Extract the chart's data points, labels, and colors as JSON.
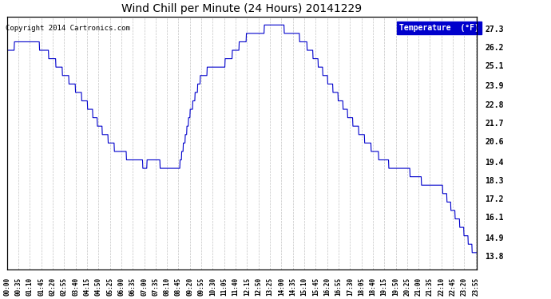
{
  "title": "Wind Chill per Minute (24 Hours) 20141229",
  "copyright": "Copyright 2014 Cartronics.com",
  "legend_label": "Temperature  (°F)",
  "line_color": "#0000CC",
  "background_color": "#ffffff",
  "grid_color": "#aaaaaa",
  "ylabel_right": "Temperature (°F)",
  "yticks": [
    13.8,
    14.9,
    16.1,
    17.2,
    18.3,
    19.4,
    20.6,
    21.7,
    22.8,
    23.9,
    25.1,
    26.2,
    27.3
  ],
  "ylim": [
    13.0,
    28.0
  ],
  "xtick_labels": [
    "00:00",
    "00:35",
    "01:10",
    "01:45",
    "02:20",
    "02:55",
    "03:40",
    "04:15",
    "04:50",
    "05:25",
    "06:00",
    "06:35",
    "07:00",
    "07:35",
    "08:10",
    "08:45",
    "09:20",
    "09:55",
    "10:30",
    "11:05",
    "11:40",
    "12:15",
    "12:50",
    "13:25",
    "14:00",
    "14:35",
    "15:10",
    "15:45",
    "16:20",
    "16:55",
    "17:30",
    "18:05",
    "18:40",
    "19:15",
    "19:50",
    "20:25",
    "21:00",
    "21:35",
    "22:10",
    "22:45",
    "23:20",
    "23:55"
  ],
  "key_times_minutes": [
    0,
    35,
    70,
    105,
    140,
    175,
    220,
    255,
    290,
    325,
    360,
    395,
    420,
    455,
    490,
    525,
    560,
    595,
    630,
    665,
    700,
    735,
    770,
    805,
    840,
    875,
    910,
    945,
    980,
    1015,
    1050,
    1085,
    1120,
    1155,
    1190,
    1225,
    1260,
    1295,
    1330,
    1365,
    1400,
    1435
  ],
  "key_values": [
    25.8,
    26.5,
    26.5,
    26.2,
    25.5,
    24.6,
    23.5,
    22.5,
    21.3,
    20.3,
    19.8,
    19.5,
    19.2,
    19.4,
    19.0,
    18.8,
    22.2,
    24.5,
    25.0,
    25.2,
    26.0,
    26.8,
    27.2,
    27.3,
    27.3,
    27.1,
    26.5,
    25.5,
    24.3,
    23.2,
    22.0,
    21.0,
    20.1,
    19.4,
    19.0,
    18.9,
    18.3,
    18.1,
    17.9,
    16.5,
    15.2,
    13.8
  ]
}
